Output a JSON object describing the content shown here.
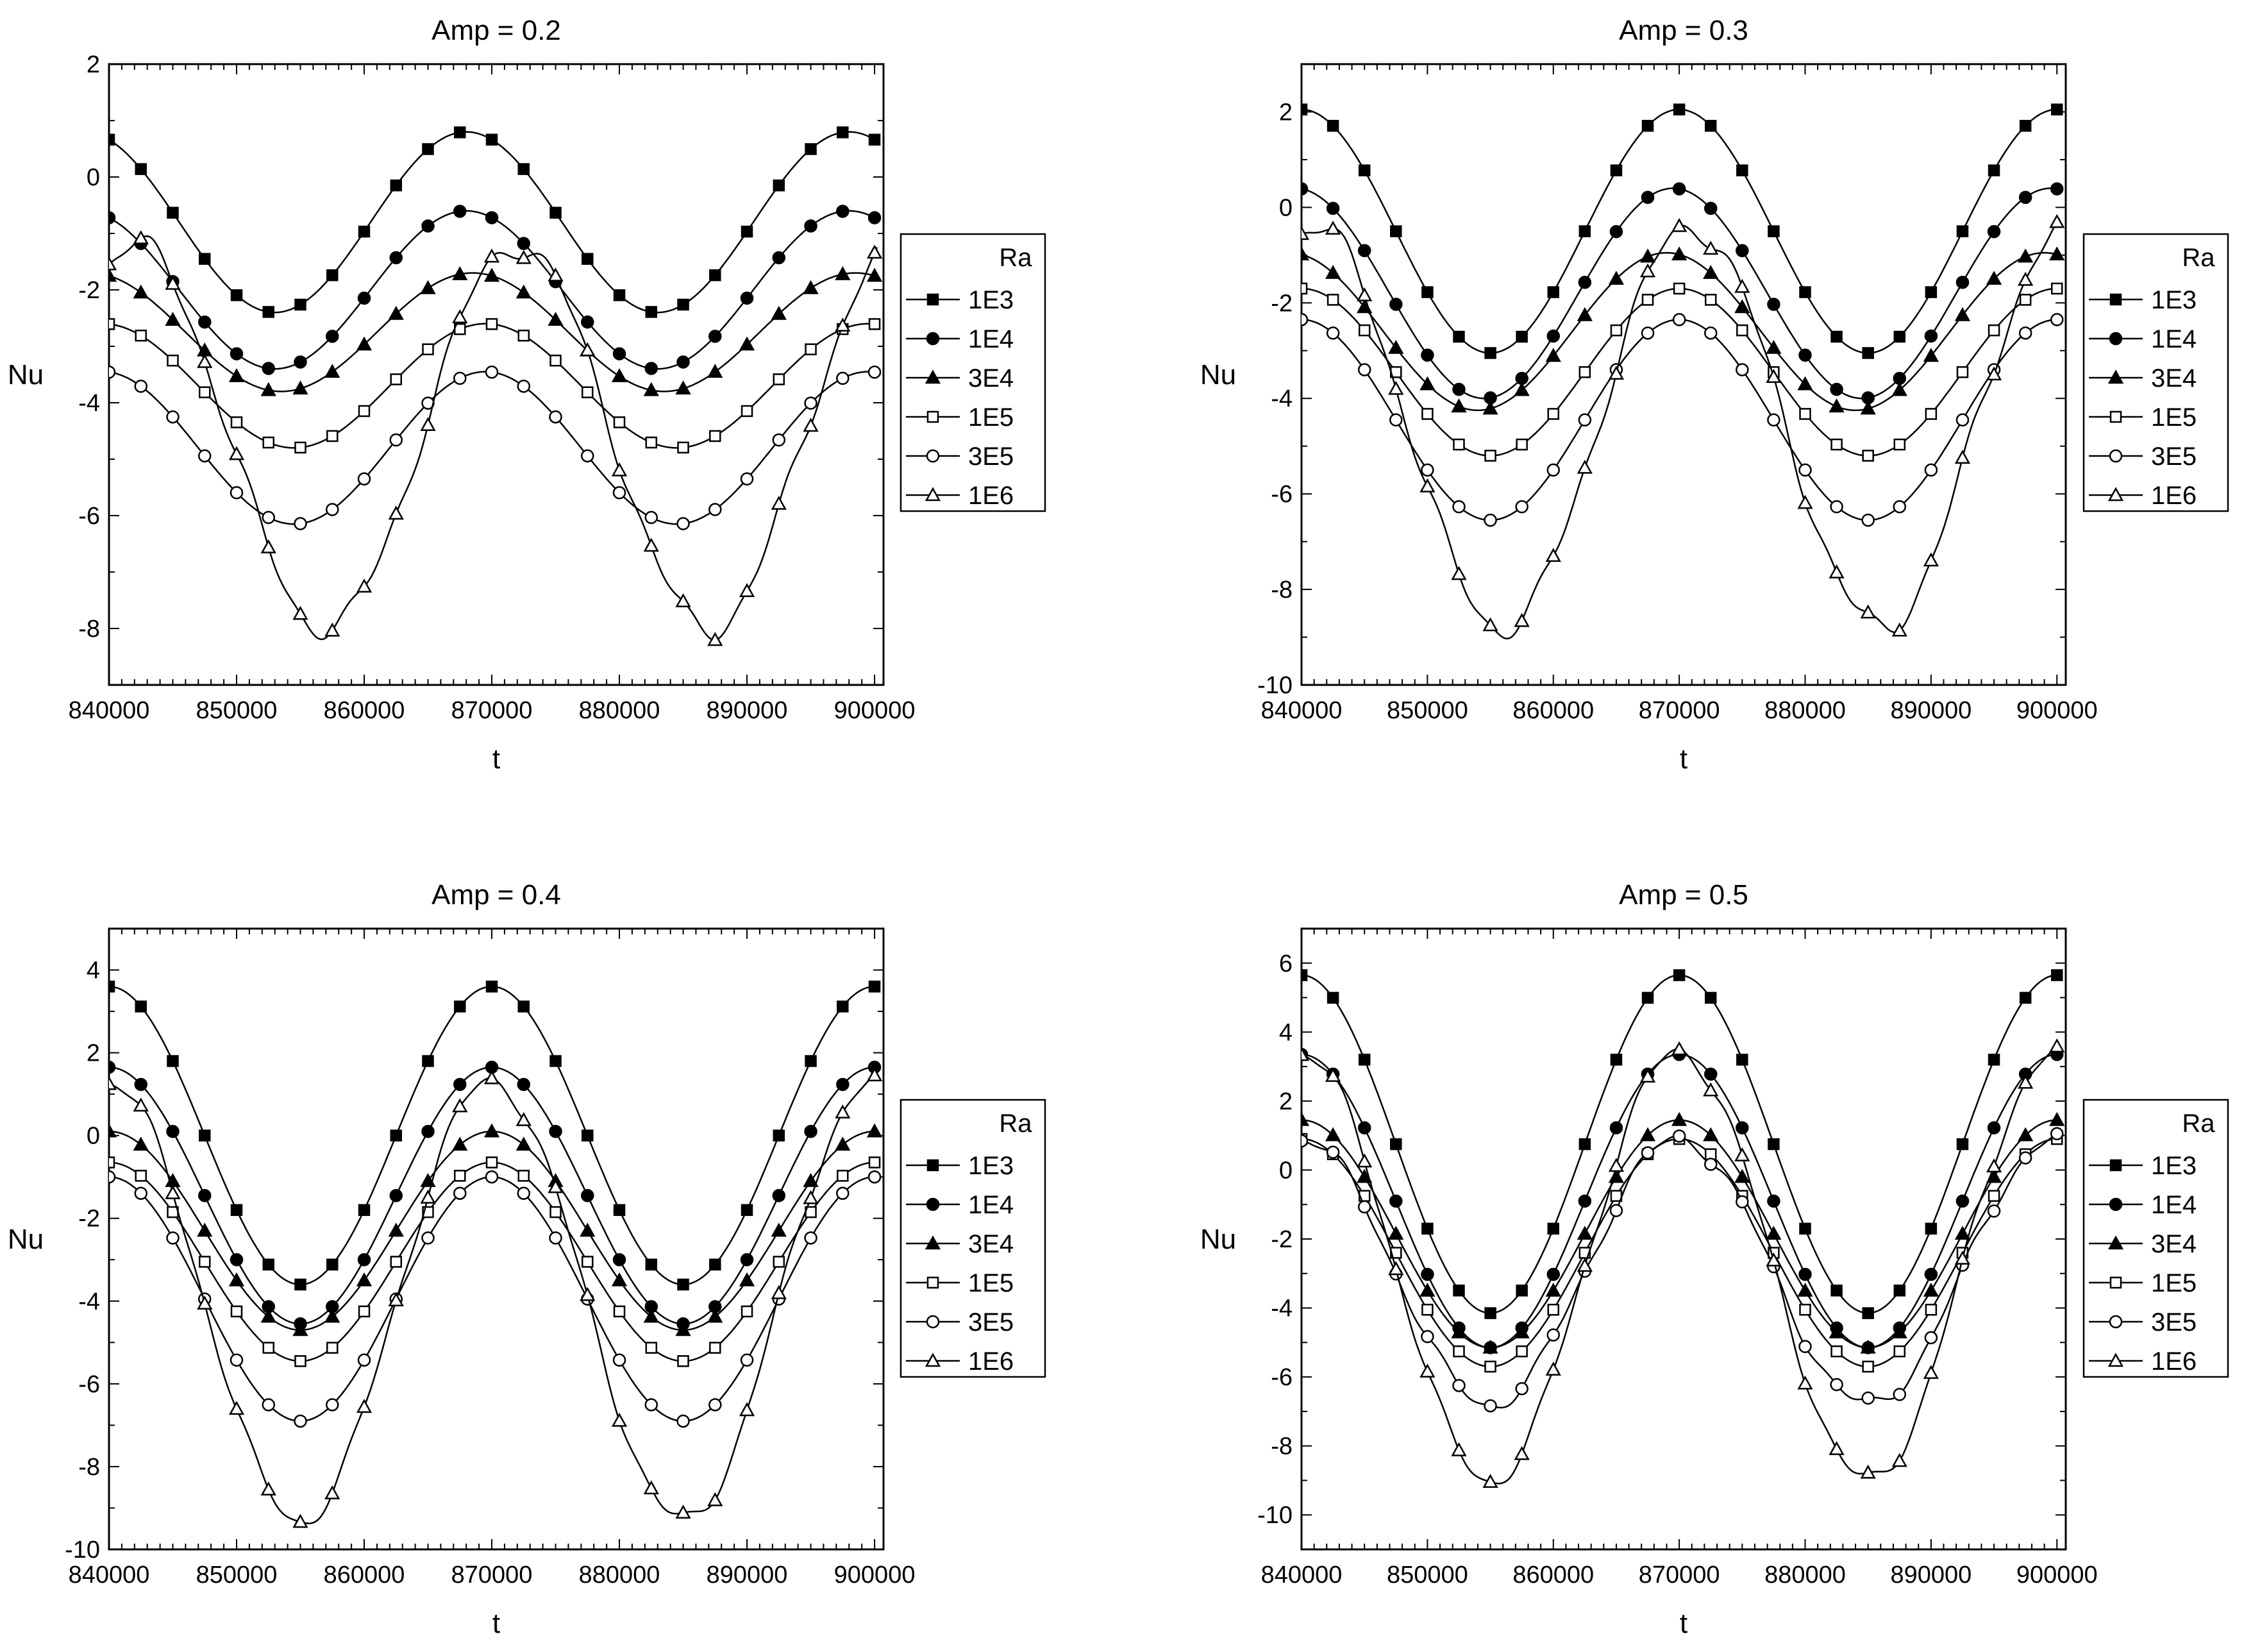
{
  "figure": {
    "background": "#ffffff",
    "ink_color": "#000000",
    "legend_title": "Ra"
  },
  "chart_data": [
    {
      "type": "line",
      "title": "Amp = 0.2",
      "xlabel": "t",
      "ylabel": "Nu",
      "xlim": [
        840000,
        900700
      ],
      "ylim": [
        -9,
        2
      ],
      "xticks": [
        840000,
        850000,
        860000,
        870000,
        880000,
        890000,
        900000
      ],
      "yticks": [
        -8,
        -6,
        -4,
        -2,
        0,
        2
      ],
      "legend": {
        "title": "Ra",
        "position": "right"
      },
      "marker_spacing": 2500,
      "series": [
        {
          "name": "1E3",
          "marker": "filled-square",
          "mean": -0.8,
          "amp": 1.6,
          "phase": 58000,
          "noise": 0
        },
        {
          "name": "1E4",
          "marker": "filled-circle",
          "mean": -2.0,
          "amp": 1.4,
          "phase": 58000,
          "noise": 0
        },
        {
          "name": "3E4",
          "marker": "filled-triangle",
          "mean": -2.75,
          "amp": 1.05,
          "phase": 58500,
          "noise": 0
        },
        {
          "name": "1E5",
          "marker": "open-square",
          "mean": -3.7,
          "amp": 1.1,
          "phase": 59500,
          "noise": 0
        },
        {
          "name": "3E5",
          "marker": "open-circle",
          "mean": -4.8,
          "amp": 1.35,
          "phase": 59500,
          "noise": 0
        },
        {
          "name": "1E6",
          "marker": "open-triangle",
          "mean": -4.6,
          "amp": 3.4,
          "phase": 62000,
          "noise": 0.25
        }
      ]
    },
    {
      "type": "line",
      "title": "Amp = 0.3",
      "xlabel": "t",
      "ylabel": "Nu",
      "xlim": [
        840000,
        900700
      ],
      "ylim": [
        -10,
        3
      ],
      "xticks": [
        840000,
        850000,
        860000,
        870000,
        880000,
        890000,
        900000
      ],
      "yticks": [
        -10,
        -8,
        -6,
        -4,
        -2,
        0,
        2
      ],
      "legend": {
        "title": "Ra",
        "position": "right"
      },
      "marker_spacing": 2500,
      "series": [
        {
          "name": "1E3",
          "marker": "filled-square",
          "mean": -0.5,
          "amp": 2.55,
          "phase": 60000,
          "noise": 0
        },
        {
          "name": "1E4",
          "marker": "filled-circle",
          "mean": -1.8,
          "amp": 2.2,
          "phase": 59500,
          "noise": 0
        },
        {
          "name": "3E4",
          "marker": "filled-triangle",
          "mean": -2.6,
          "amp": 1.65,
          "phase": 59000,
          "noise": 0
        },
        {
          "name": "1E5",
          "marker": "open-square",
          "mean": -3.45,
          "amp": 1.75,
          "phase": 60000,
          "noise": 0
        },
        {
          "name": "3E5",
          "marker": "open-circle",
          "mean": -4.45,
          "amp": 2.1,
          "phase": 60000,
          "noise": 0
        },
        {
          "name": "1E6",
          "marker": "open-triangle",
          "mean": -4.6,
          "amp": 4.2,
          "phase": 61000,
          "noise": 0.3
        }
      ]
    },
    {
      "type": "line",
      "title": "Amp = 0.4",
      "xlabel": "t",
      "ylabel": "Nu",
      "xlim": [
        840000,
        900700
      ],
      "ylim": [
        -10,
        5
      ],
      "xticks": [
        840000,
        850000,
        860000,
        870000,
        880000,
        890000,
        900000
      ],
      "yticks": [
        -10,
        -8,
        -6,
        -4,
        -2,
        0,
        2,
        4
      ],
      "legend": {
        "title": "Ra",
        "position": "right"
      },
      "marker_spacing": 2500,
      "series": [
        {
          "name": "1E3",
          "marker": "filled-square",
          "mean": 0.0,
          "amp": 3.6,
          "phase": 60000,
          "noise": 0
        },
        {
          "name": "1E4",
          "marker": "filled-circle",
          "mean": -1.45,
          "amp": 3.1,
          "phase": 60000,
          "noise": 0
        },
        {
          "name": "3E4",
          "marker": "filled-triangle",
          "mean": -2.3,
          "amp": 2.4,
          "phase": 60000,
          "noise": 0
        },
        {
          "name": "1E5",
          "marker": "open-square",
          "mean": -3.05,
          "amp": 2.4,
          "phase": 60000,
          "noise": 0
        },
        {
          "name": "3E5",
          "marker": "open-circle",
          "mean": -3.95,
          "amp": 2.95,
          "phase": 60000,
          "noise": 0
        },
        {
          "name": "1E6",
          "marker": "open-triangle",
          "mean": -4.0,
          "amp": 5.3,
          "phase": 60000,
          "noise": 0.25
        }
      ]
    },
    {
      "type": "line",
      "title": "Amp = 0.5",
      "xlabel": "t",
      "ylabel": "Nu",
      "xlim": [
        840000,
        900700
      ],
      "ylim": [
        -11,
        7
      ],
      "xticks": [
        840000,
        850000,
        860000,
        870000,
        880000,
        890000,
        900000
      ],
      "yticks": [
        -10,
        -8,
        -6,
        -4,
        -2,
        0,
        2,
        4,
        6
      ],
      "legend": {
        "title": "Ra",
        "position": "right"
      },
      "marker_spacing": 2500,
      "series": [
        {
          "name": "1E3",
          "marker": "filled-square",
          "mean": 0.75,
          "amp": 4.9,
          "phase": 60000,
          "noise": 0
        },
        {
          "name": "1E4",
          "marker": "filled-circle",
          "mean": -0.9,
          "amp": 4.25,
          "phase": 60000,
          "noise": 0
        },
        {
          "name": "3E4",
          "marker": "filled-triangle",
          "mean": -1.85,
          "amp": 3.3,
          "phase": 60000,
          "noise": 0
        },
        {
          "name": "1E5",
          "marker": "open-square",
          "mean": -2.4,
          "amp": 3.3,
          "phase": 60000,
          "noise": 0
        },
        {
          "name": "3E5",
          "marker": "open-circle",
          "mean": -2.95,
          "amp": 3.85,
          "phase": 60000,
          "noise": 0.25
        },
        {
          "name": "1E6",
          "marker": "open-triangle",
          "mean": -2.8,
          "amp": 6.2,
          "phase": 60000,
          "noise": 0.3
        }
      ]
    }
  ]
}
